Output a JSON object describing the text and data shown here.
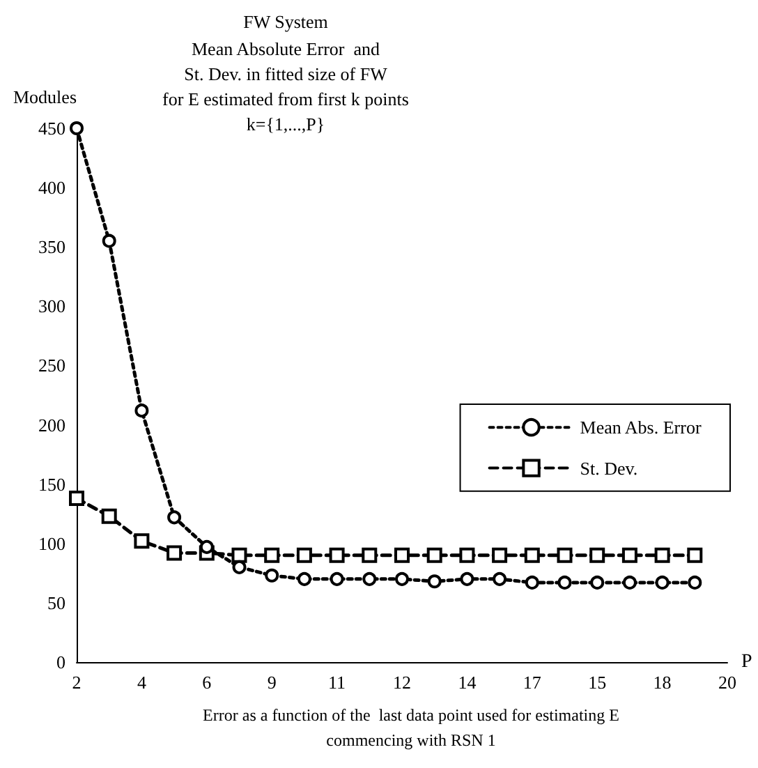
{
  "chart_data": {
    "type": "line",
    "title": "FW System",
    "subtitle": "Mean Absolute Error  and\nSt. Dev. in fitted size of FW\nfor E estimated from first k points\nk={1,...,P}",
    "ylabel": "Modules",
    "xlabel": "P",
    "annotations": [
      "Error as a function of the  last data point used for estimating E\ncommencing with RSN 1"
    ],
    "categories": [
      "2",
      null,
      "4",
      null,
      "6",
      null,
      "9",
      null,
      "11",
      null,
      "12",
      null,
      "14",
      null,
      "17",
      null,
      "15",
      null,
      "18",
      null,
      "20"
    ],
    "series": [
      {
        "name": "Mean Abs. Error",
        "color": "#000000",
        "marker": "circle",
        "line_style": "dotted",
        "values": [
          450,
          355,
          212,
          122,
          97,
          80,
          73,
          70,
          70,
          70,
          70,
          68,
          70,
          70,
          67,
          67,
          67,
          67,
          67,
          67,
          null
        ]
      },
      {
        "name": "St. Dev.",
        "color": "#000000",
        "marker": "square",
        "line_style": "dashed",
        "values": [
          138,
          123,
          102,
          92,
          92,
          90,
          90,
          90,
          90,
          90,
          90,
          90,
          90,
          90,
          90,
          90,
          90,
          90,
          90,
          90,
          null
        ]
      }
    ],
    "ylim": [
      0,
      450
    ],
    "yticks": [
      0,
      50,
      100,
      150,
      200,
      250,
      300,
      350,
      400,
      450
    ],
    "grid": false,
    "legend": "right"
  }
}
